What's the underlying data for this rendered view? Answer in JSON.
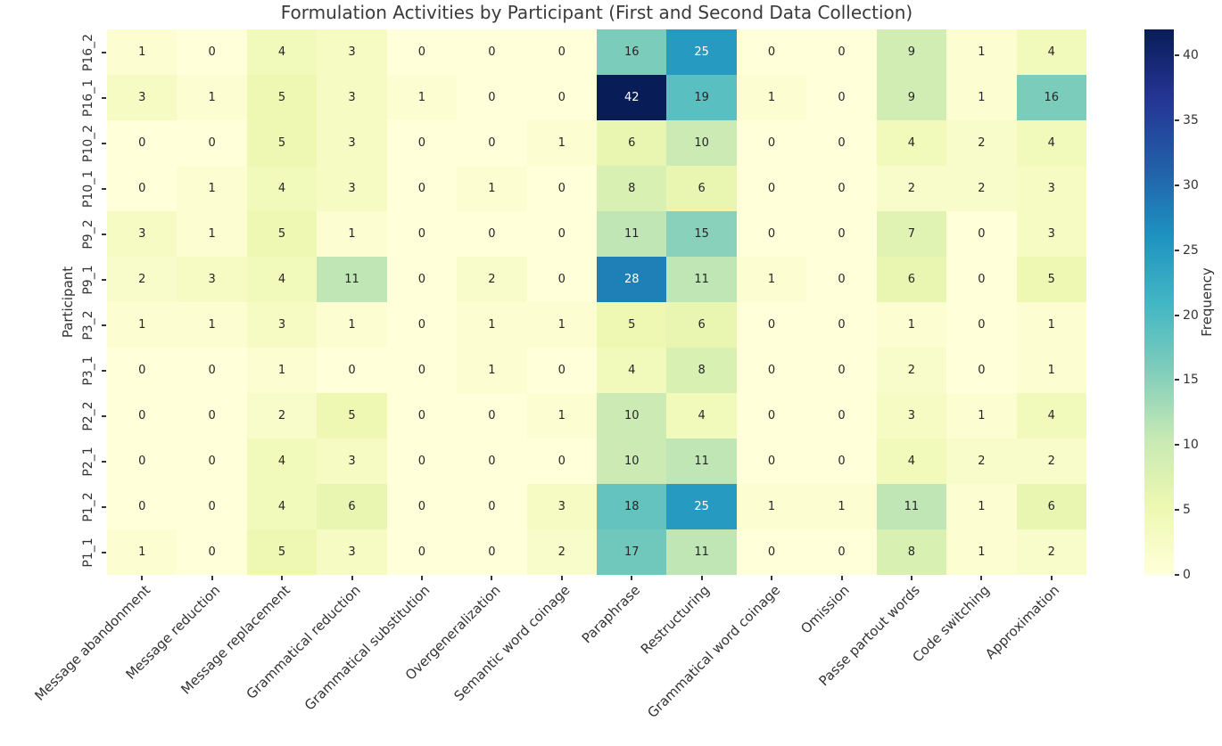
{
  "chart_data": {
    "type": "heatmap",
    "title": "Formulation Activities by Participant (First and Second Data Collection)",
    "xlabel": "",
    "ylabel": "Participant",
    "colorbar_label": "Frequency",
    "colormap": "YlGnBu",
    "vmin": 0,
    "vmax": 42,
    "colorbar_ticks": [
      0,
      5,
      10,
      15,
      20,
      25,
      30,
      35,
      40
    ],
    "legend_position": "right",
    "grid": false,
    "columns": [
      "Message abandonment",
      "Message reduction",
      "Message replacement",
      "Grammatical reduction",
      "Grammatical substitution",
      "Overgeneralization",
      "Semantic word coinage",
      "Paraphrase",
      "Restructuring",
      "Grammatical word coinage",
      "Omission",
      "Passe partout words",
      "Code switching",
      "Approximation"
    ],
    "rows": [
      "P16_2",
      "P16_1",
      "P10_2",
      "P10_1",
      "P9_2",
      "P9_1",
      "P3_2",
      "P3_1",
      "P2_2",
      "P2_1",
      "P1_2",
      "P1_1"
    ],
    "values": [
      [
        1,
        0,
        4,
        3,
        0,
        0,
        0,
        16,
        25,
        0,
        0,
        9,
        1,
        4
      ],
      [
        3,
        1,
        5,
        3,
        1,
        0,
        0,
        42,
        19,
        1,
        0,
        9,
        1,
        16
      ],
      [
        0,
        0,
        5,
        3,
        0,
        0,
        1,
        6,
        10,
        0,
        0,
        4,
        2,
        4
      ],
      [
        0,
        1,
        4,
        3,
        0,
        1,
        0,
        8,
        6,
        0,
        0,
        2,
        2,
        3
      ],
      [
        3,
        1,
        5,
        1,
        0,
        0,
        0,
        11,
        15,
        0,
        0,
        7,
        0,
        3
      ],
      [
        2,
        3,
        4,
        11,
        0,
        2,
        0,
        28,
        11,
        1,
        0,
        6,
        0,
        5
      ],
      [
        1,
        1,
        3,
        1,
        0,
        1,
        1,
        5,
        6,
        0,
        0,
        1,
        0,
        1
      ],
      [
        0,
        0,
        1,
        0,
        0,
        1,
        0,
        4,
        8,
        0,
        0,
        2,
        0,
        1
      ],
      [
        0,
        0,
        2,
        5,
        0,
        0,
        1,
        10,
        4,
        0,
        0,
        3,
        1,
        4
      ],
      [
        0,
        0,
        4,
        3,
        0,
        0,
        0,
        10,
        11,
        0,
        0,
        4,
        2,
        2
      ],
      [
        0,
        0,
        4,
        6,
        0,
        0,
        3,
        18,
        25,
        1,
        1,
        11,
        1,
        6
      ],
      [
        1,
        0,
        5,
        3,
        0,
        0,
        2,
        17,
        11,
        0,
        0,
        8,
        1,
        2
      ]
    ]
  },
  "colors": {
    "colormap_stops": [
      "#ffffd9",
      "#edf8b1",
      "#c7e9b4",
      "#7fcdbb",
      "#41b6c4",
      "#1d91c0",
      "#225ea8",
      "#253494",
      "#081d58"
    ],
    "annotation_dark": "#262626",
    "annotation_light": "#ffffff",
    "tick_color": "#333333",
    "background": "#ffffff"
  }
}
